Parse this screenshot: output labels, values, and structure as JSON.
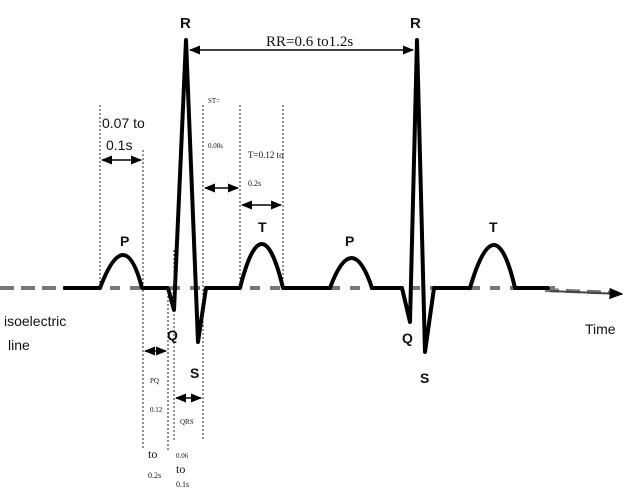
{
  "waves": {
    "p1": "P",
    "q1": "Q",
    "r1": "R",
    "s1": "S",
    "t1": "T",
    "p2": "P",
    "q2": "Q",
    "r2": "R",
    "s2": "S",
    "t2": "T"
  },
  "labels": {
    "rr": "RR=0.6 to1.2s",
    "p_duration_line1": "0.07 to",
    "p_duration_line2": "0.1s",
    "st_line1": "ST=",
    "st_line2": "0.08s",
    "t_duration_line1": "T=0.12 to",
    "t_duration_line2": "0.2s",
    "pq_line1": "PQ",
    "pq_line2": "0.12",
    "pq_line3": "to",
    "pq_line4": "0.2s",
    "qrs_line1": "QRS",
    "qrs_line2": "0.06",
    "qrs_line3": "to",
    "qrs_line4": "0.1s",
    "isoelectric_line1": "isoelectric",
    "isoelectric_line2": "line",
    "time": "Time"
  },
  "colors": {
    "trace": "#000000",
    "baseline": "#777777",
    "guide": "#222222"
  }
}
